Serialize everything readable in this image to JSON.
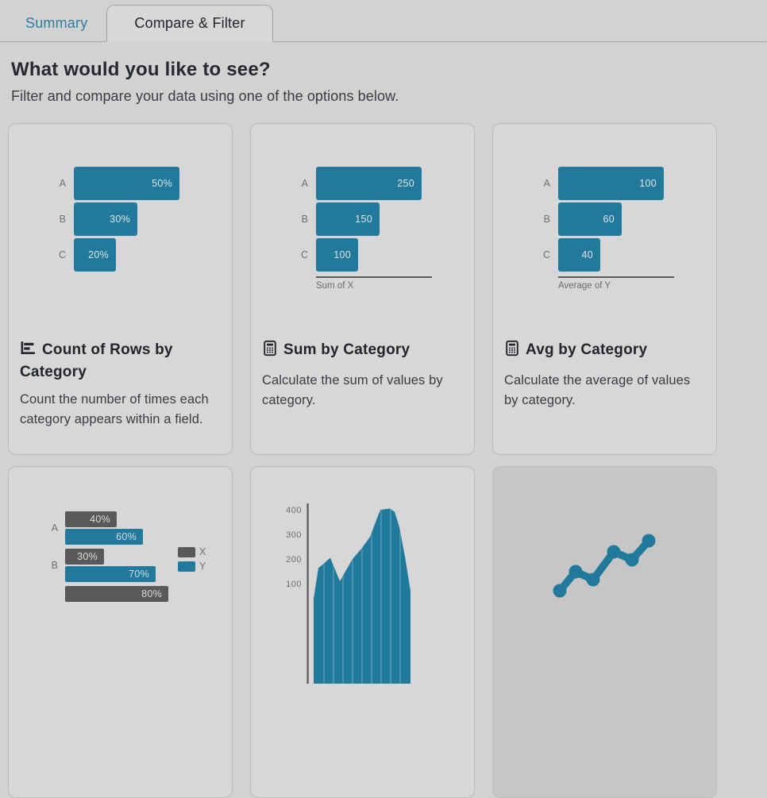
{
  "colors": {
    "teal": "#217a9b",
    "bar_gray": "#595959",
    "bar_label": "#dde3e5",
    "page_bg": "#d2d2d2",
    "card_bg": "#d7d7d7",
    "card_highlight_bg": "#c6c6c6",
    "tab_inactive_text": "#2e7e9e"
  },
  "tabs": [
    {
      "label": "Summary",
      "active": false
    },
    {
      "label": "Compare & Filter",
      "active": true
    }
  ],
  "intro": {
    "title": "What would you like to see?",
    "subtitle": "Filter and compare your data using one of the options below."
  },
  "cards": [
    {
      "id": "count-of-rows-by-category",
      "icon": "bar-chart-horizontal-icon",
      "title": "Count of Rows by Category",
      "description": "Count the number of times each category appears within a field.",
      "chart": {
        "type": "hbar",
        "categories": [
          "A",
          "B",
          "C"
        ],
        "values": [
          50,
          30,
          20
        ],
        "value_labels": [
          "50%",
          "30%",
          "20%"
        ],
        "max": 50
      }
    },
    {
      "id": "sum-by-category",
      "icon": "calculator-icon",
      "title": "Sum by Category",
      "description": "Calculate the sum of values by category.",
      "chart": {
        "type": "hbar",
        "categories": [
          "A",
          "B",
          "C"
        ],
        "values": [
          250,
          150,
          100
        ],
        "value_labels": [
          "250",
          "150",
          "100"
        ],
        "max": 250,
        "axis_label": "Sum of X"
      }
    },
    {
      "id": "avg-by-category",
      "icon": "calculator-icon",
      "title": "Avg by Category",
      "description": "Calculate the average of values by category.",
      "chart": {
        "type": "hbar",
        "categories": [
          "A",
          "B",
          "C"
        ],
        "values": [
          100,
          60,
          40
        ],
        "value_labels": [
          "100",
          "60",
          "40"
        ],
        "max": 100,
        "axis_label": "Average of Y"
      }
    },
    {
      "id": "compare-x-y-percentages",
      "chart": {
        "type": "grouped-hbar",
        "max": 80,
        "groups": [
          {
            "label": "A",
            "bars": [
              {
                "series": "X",
                "value": 40,
                "label": "40%"
              },
              {
                "series": "Y",
                "value": 60,
                "label": "60%"
              }
            ]
          },
          {
            "label": "B",
            "bars": [
              {
                "series": "X",
                "value": 30,
                "label": "30%"
              },
              {
                "series": "Y",
                "value": 70,
                "label": "70%"
              }
            ]
          },
          {
            "label": "",
            "bars": [
              {
                "series": "X",
                "value": 80,
                "label": "80%"
              }
            ]
          }
        ],
        "legend": [
          {
            "name": "X",
            "series": "X"
          },
          {
            "name": "Y",
            "series": "Y"
          }
        ]
      }
    },
    {
      "id": "area-distribution",
      "chart": {
        "type": "area",
        "y_ticks": [
          400,
          300,
          200,
          100
        ],
        "points": [
          [
            79,
            40
          ],
          [
            85,
            163
          ],
          [
            100,
            205
          ],
          [
            112,
            110
          ],
          [
            128,
            200
          ],
          [
            140,
            245
          ],
          [
            150,
            290
          ],
          [
            157,
            350
          ],
          [
            163,
            400
          ],
          [
            175,
            405
          ],
          [
            181,
            392
          ],
          [
            187,
            330
          ],
          [
            194,
            210
          ],
          [
            201,
            70
          ]
        ]
      }
    },
    {
      "id": "line-trend",
      "highlighted": true,
      "chart": {
        "type": "line",
        "points": [
          [
            84,
            156
          ],
          [
            104,
            132
          ],
          [
            126,
            142
          ],
          [
            152,
            107
          ],
          [
            175,
            117
          ],
          [
            196,
            93
          ]
        ]
      }
    }
  ]
}
